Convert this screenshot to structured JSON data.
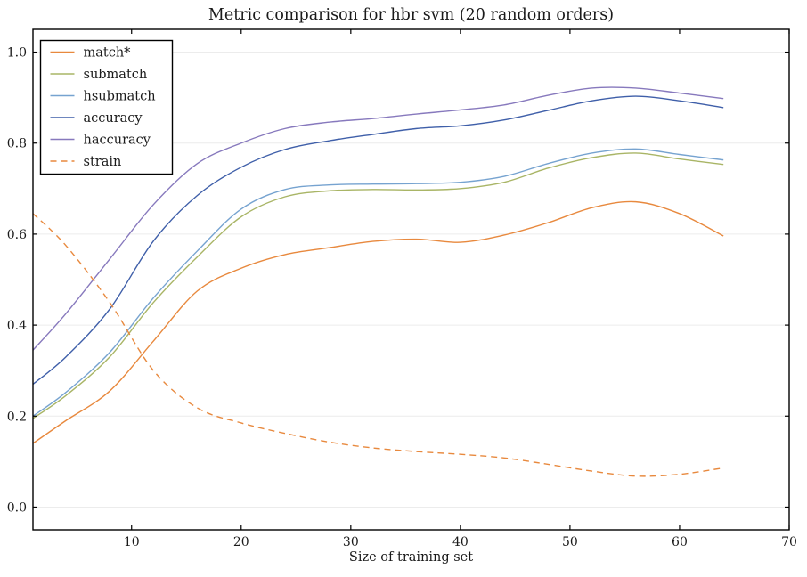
{
  "figure": {
    "title": "Metric comparison for hbr svm (20 random orders)",
    "xlabel": "Size of training set"
  },
  "chart_data": {
    "type": "line",
    "title": "Metric comparison for hbr svm (20 random orders)",
    "xlabel": "Size of training set",
    "ylabel": "",
    "xlim": [
      1,
      70
    ],
    "ylim": [
      -0.05,
      1.05
    ],
    "xticks": [
      10,
      20,
      30,
      40,
      50,
      60,
      70
    ],
    "xtick_labels": [
      "10",
      "20",
      "30",
      "40",
      "50",
      "60",
      "70"
    ],
    "yticks": [
      0.0,
      0.2,
      0.4,
      0.6,
      0.8,
      1.0
    ],
    "ytick_labels": [
      "0.0",
      "0.2",
      "0.4",
      "0.6",
      "0.8",
      "1.0"
    ],
    "grid": "horizontal",
    "legend_position": "upper left",
    "x": [
      1,
      4,
      8,
      12,
      16,
      20,
      24,
      28,
      32,
      36,
      40,
      44,
      48,
      52,
      56,
      60,
      64
    ],
    "series": [
      {
        "name": "match*",
        "color": "#e8893e",
        "style": "solid",
        "values": [
          0.14,
          0.19,
          0.255,
          0.365,
          0.475,
          0.525,
          0.555,
          0.57,
          0.584,
          0.589,
          0.582,
          0.598,
          0.625,
          0.658,
          0.671,
          0.645,
          0.596
        ]
      },
      {
        "name": "submatch",
        "color": "#a9b566",
        "style": "solid",
        "values": [
          0.195,
          0.245,
          0.33,
          0.45,
          0.55,
          0.638,
          0.682,
          0.695,
          0.698,
          0.697,
          0.7,
          0.714,
          0.745,
          0.768,
          0.778,
          0.765,
          0.753
        ]
      },
      {
        "name": "hsubmatch",
        "color": "#76a3d0",
        "style": "solid",
        "values": [
          0.2,
          0.252,
          0.34,
          0.46,
          0.563,
          0.655,
          0.698,
          0.708,
          0.71,
          0.711,
          0.714,
          0.727,
          0.755,
          0.778,
          0.787,
          0.775,
          0.763
        ]
      },
      {
        "name": "accuracy",
        "color": "#3f5fa9",
        "style": "solid",
        "values": [
          0.27,
          0.33,
          0.435,
          0.585,
          0.685,
          0.747,
          0.786,
          0.805,
          0.819,
          0.832,
          0.838,
          0.851,
          0.872,
          0.893,
          0.903,
          0.893,
          0.878
        ]
      },
      {
        "name": "haccuracy",
        "color": "#8779bd",
        "style": "solid",
        "values": [
          0.345,
          0.425,
          0.545,
          0.665,
          0.755,
          0.8,
          0.832,
          0.846,
          0.854,
          0.864,
          0.873,
          0.884,
          0.905,
          0.921,
          0.921,
          0.91,
          0.898
        ]
      },
      {
        "name": "strain",
        "color": "#e8893e",
        "style": "dashed",
        "values": [
          0.645,
          0.575,
          0.45,
          0.3,
          0.218,
          0.185,
          0.162,
          0.143,
          0.13,
          0.122,
          0.116,
          0.108,
          0.094,
          0.079,
          0.068,
          0.072,
          0.086
        ]
      }
    ],
    "colors": {
      "spine": "#000000",
      "grid": "#ececec",
      "text": "#1a1a1a",
      "background": "#ffffff"
    }
  }
}
